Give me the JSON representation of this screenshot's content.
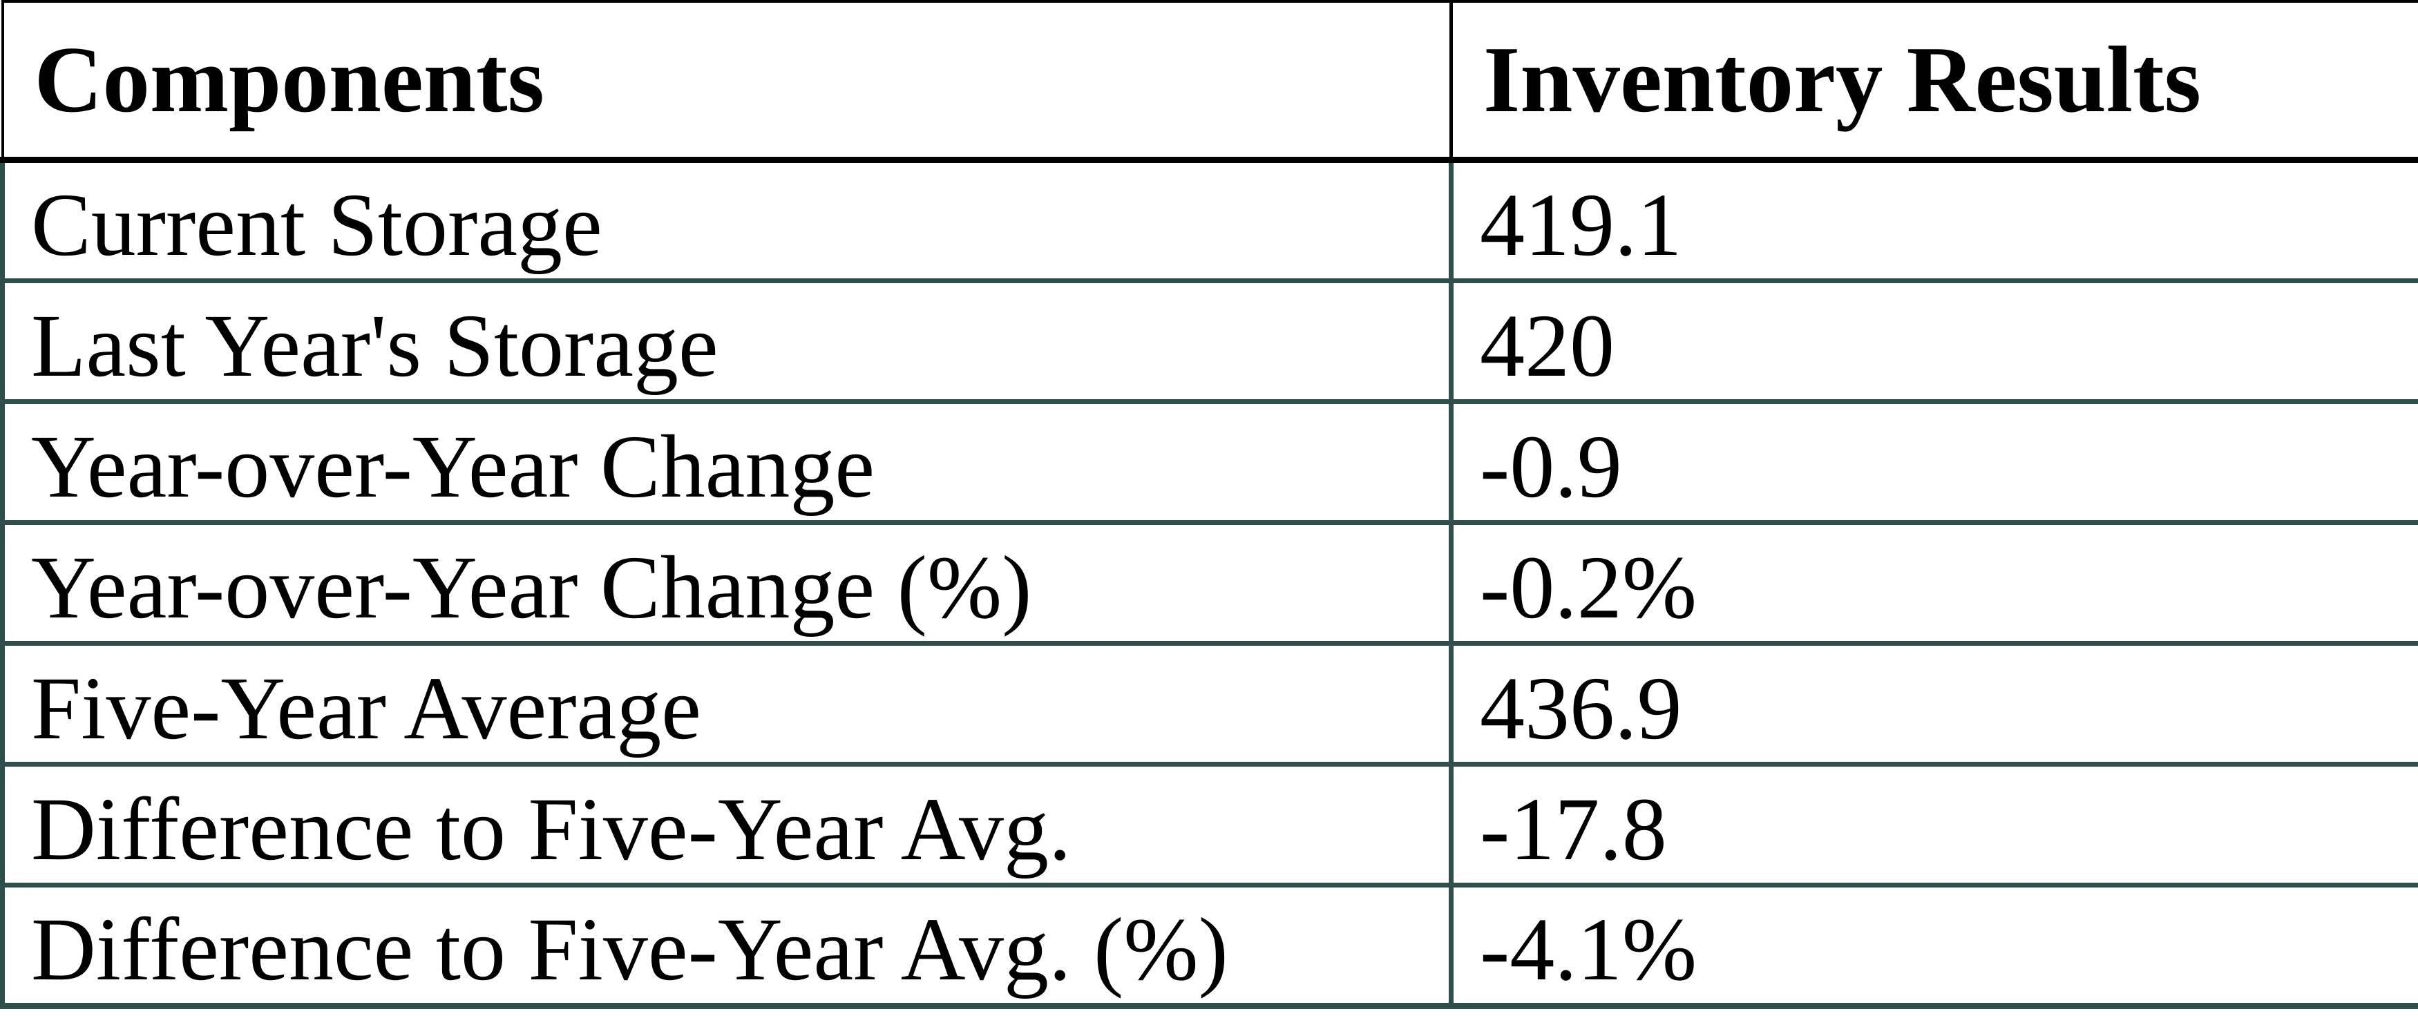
{
  "table": {
    "columns": [
      {
        "label": "Components"
      },
      {
        "label": "Inventory Results"
      }
    ],
    "rows": [
      {
        "label": "Current Storage",
        "value": "419.1"
      },
      {
        "label": "Last Year's Storage",
        "value": "420"
      },
      {
        "label": "Year-over-Year Change",
        "value": "-0.9"
      },
      {
        "label": "Year-over-Year Change (%)",
        "value": "-0.2%"
      },
      {
        "label": "Five-Year Average",
        "value": "436.9"
      },
      {
        "label": "Difference to Five-Year Avg.",
        "value": "-17.8"
      },
      {
        "label": "Difference to Five-Year Avg. (%)",
        "value": "-4.1%"
      }
    ]
  },
  "colors": {
    "header_border": "#000000",
    "body_border": "#2F4F4C",
    "text": "#000000",
    "background": "#FFFFFF"
  }
}
